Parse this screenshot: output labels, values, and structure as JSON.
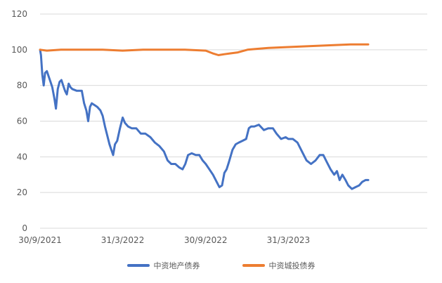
{
  "chart_data": {
    "type": "line",
    "title": "",
    "xlabel": "",
    "ylabel": "",
    "ylim": [
      0,
      120
    ],
    "yticks": [
      0,
      20,
      40,
      60,
      80,
      100,
      120
    ],
    "xlim": [
      "2021-09-30",
      "2024-01-31"
    ],
    "xtick_labels": [
      "30/9/2021",
      "31/3/2022",
      "30/9/2022",
      "31/3/2023"
    ],
    "xtick_dates": [
      "2021-09-30",
      "2022-03-31",
      "2022-09-30",
      "2023-03-31"
    ],
    "grid": "horizontal",
    "legend_position": "bottom",
    "series": [
      {
        "name": "中资地产债券",
        "color": "#4472C4",
        "points": [
          [
            "2021-09-30",
            100
          ],
          [
            "2021-10-02",
            97
          ],
          [
            "2021-10-05",
            86
          ],
          [
            "2021-10-08",
            80
          ],
          [
            "2021-10-11",
            87
          ],
          [
            "2021-10-15",
            88
          ],
          [
            "2021-10-19",
            85
          ],
          [
            "2021-10-23",
            82
          ],
          [
            "2021-10-27",
            79
          ],
          [
            "2021-11-01",
            72
          ],
          [
            "2021-11-04",
            67
          ],
          [
            "2021-11-08",
            78
          ],
          [
            "2021-11-12",
            82
          ],
          [
            "2021-11-16",
            83
          ],
          [
            "2021-11-20",
            80
          ],
          [
            "2021-11-24",
            77
          ],
          [
            "2021-11-28",
            75
          ],
          [
            "2021-12-02",
            81
          ],
          [
            "2021-12-06",
            79
          ],
          [
            "2021-12-10",
            78
          ],
          [
            "2021-12-20",
            77
          ],
          [
            "2021-12-31",
            77
          ],
          [
            "2022-01-05",
            70
          ],
          [
            "2022-01-10",
            66
          ],
          [
            "2022-01-14",
            60
          ],
          [
            "2022-01-18",
            68
          ],
          [
            "2022-01-22",
            70
          ],
          [
            "2022-01-28",
            69
          ],
          [
            "2022-02-03",
            68
          ],
          [
            "2022-02-10",
            66
          ],
          [
            "2022-02-15",
            63
          ],
          [
            "2022-02-20",
            57
          ],
          [
            "2022-02-25",
            52
          ],
          [
            "2022-03-02",
            47
          ],
          [
            "2022-03-06",
            44
          ],
          [
            "2022-03-10",
            41
          ],
          [
            "2022-03-14",
            47
          ],
          [
            "2022-03-19",
            49
          ],
          [
            "2022-03-25",
            56
          ],
          [
            "2022-03-31",
            62
          ],
          [
            "2022-04-05",
            59
          ],
          [
            "2022-04-12",
            57
          ],
          [
            "2022-04-20",
            56
          ],
          [
            "2022-04-30",
            56
          ],
          [
            "2022-05-10",
            53
          ],
          [
            "2022-05-20",
            53
          ],
          [
            "2022-05-31",
            51
          ],
          [
            "2022-06-10",
            48
          ],
          [
            "2022-06-20",
            46
          ],
          [
            "2022-06-30",
            43
          ],
          [
            "2022-07-08",
            38
          ],
          [
            "2022-07-16",
            36
          ],
          [
            "2022-07-25",
            36
          ],
          [
            "2022-08-03",
            34
          ],
          [
            "2022-08-10",
            33
          ],
          [
            "2022-08-16",
            36
          ],
          [
            "2022-08-22",
            41
          ],
          [
            "2022-08-30",
            42
          ],
          [
            "2022-09-08",
            41
          ],
          [
            "2022-09-16",
            41
          ],
          [
            "2022-09-23",
            38
          ],
          [
            "2022-09-30",
            36
          ],
          [
            "2022-10-08",
            33
          ],
          [
            "2022-10-16",
            30
          ],
          [
            "2022-10-24",
            26
          ],
          [
            "2022-10-30",
            23
          ],
          [
            "2022-11-05",
            24
          ],
          [
            "2022-11-10",
            31
          ],
          [
            "2022-11-15",
            33
          ],
          [
            "2022-11-20",
            37
          ],
          [
            "2022-11-28",
            44
          ],
          [
            "2022-12-05",
            47
          ],
          [
            "2022-12-12",
            48
          ],
          [
            "2022-12-20",
            49
          ],
          [
            "2022-12-28",
            50
          ],
          [
            "2023-01-03",
            56
          ],
          [
            "2023-01-08",
            57
          ],
          [
            "2023-01-15",
            57
          ],
          [
            "2023-01-25",
            58
          ],
          [
            "2023-02-05",
            55
          ],
          [
            "2023-02-15",
            56
          ],
          [
            "2023-02-25",
            56
          ],
          [
            "2023-03-05",
            53
          ],
          [
            "2023-03-15",
            50
          ],
          [
            "2023-03-25",
            51
          ],
          [
            "2023-03-31",
            50
          ],
          [
            "2023-04-10",
            50
          ],
          [
            "2023-04-20",
            48
          ],
          [
            "2023-04-30",
            43
          ],
          [
            "2023-05-10",
            38
          ],
          [
            "2023-05-20",
            36
          ],
          [
            "2023-05-30",
            38
          ],
          [
            "2023-06-08",
            41
          ],
          [
            "2023-06-16",
            41
          ],
          [
            "2023-06-24",
            37
          ],
          [
            "2023-07-02",
            33
          ],
          [
            "2023-07-10",
            30
          ],
          [
            "2023-07-16",
            32
          ],
          [
            "2023-07-22",
            27
          ],
          [
            "2023-07-28",
            30
          ],
          [
            "2023-08-04",
            27
          ],
          [
            "2023-08-10",
            24
          ],
          [
            "2023-08-18",
            22
          ],
          [
            "2023-08-26",
            23
          ],
          [
            "2023-09-03",
            24
          ],
          [
            "2023-09-10",
            26
          ],
          [
            "2023-09-17",
            27
          ],
          [
            "2023-09-23",
            27
          ]
        ]
      },
      {
        "name": "中资城投债券",
        "color": "#ED7D31",
        "points": [
          [
            "2021-09-30",
            100
          ],
          [
            "2021-10-15",
            99.5
          ],
          [
            "2021-11-15",
            100
          ],
          [
            "2021-12-31",
            100
          ],
          [
            "2022-02-15",
            100
          ],
          [
            "2022-03-31",
            99.5
          ],
          [
            "2022-05-15",
            100
          ],
          [
            "2022-06-30",
            100
          ],
          [
            "2022-08-15",
            100
          ],
          [
            "2022-09-30",
            99.5
          ],
          [
            "2022-10-15",
            98
          ],
          [
            "2022-10-28",
            97
          ],
          [
            "2022-11-10",
            97.5
          ],
          [
            "2022-11-25",
            98
          ],
          [
            "2022-12-10",
            98.5
          ],
          [
            "2022-12-31",
            100
          ],
          [
            "2023-01-20",
            100.5
          ],
          [
            "2023-02-15",
            101
          ],
          [
            "2023-03-31",
            101.5
          ],
          [
            "2023-05-15",
            102
          ],
          [
            "2023-06-30",
            102.5
          ],
          [
            "2023-08-15",
            103
          ],
          [
            "2023-09-23",
            103
          ]
        ]
      }
    ]
  }
}
